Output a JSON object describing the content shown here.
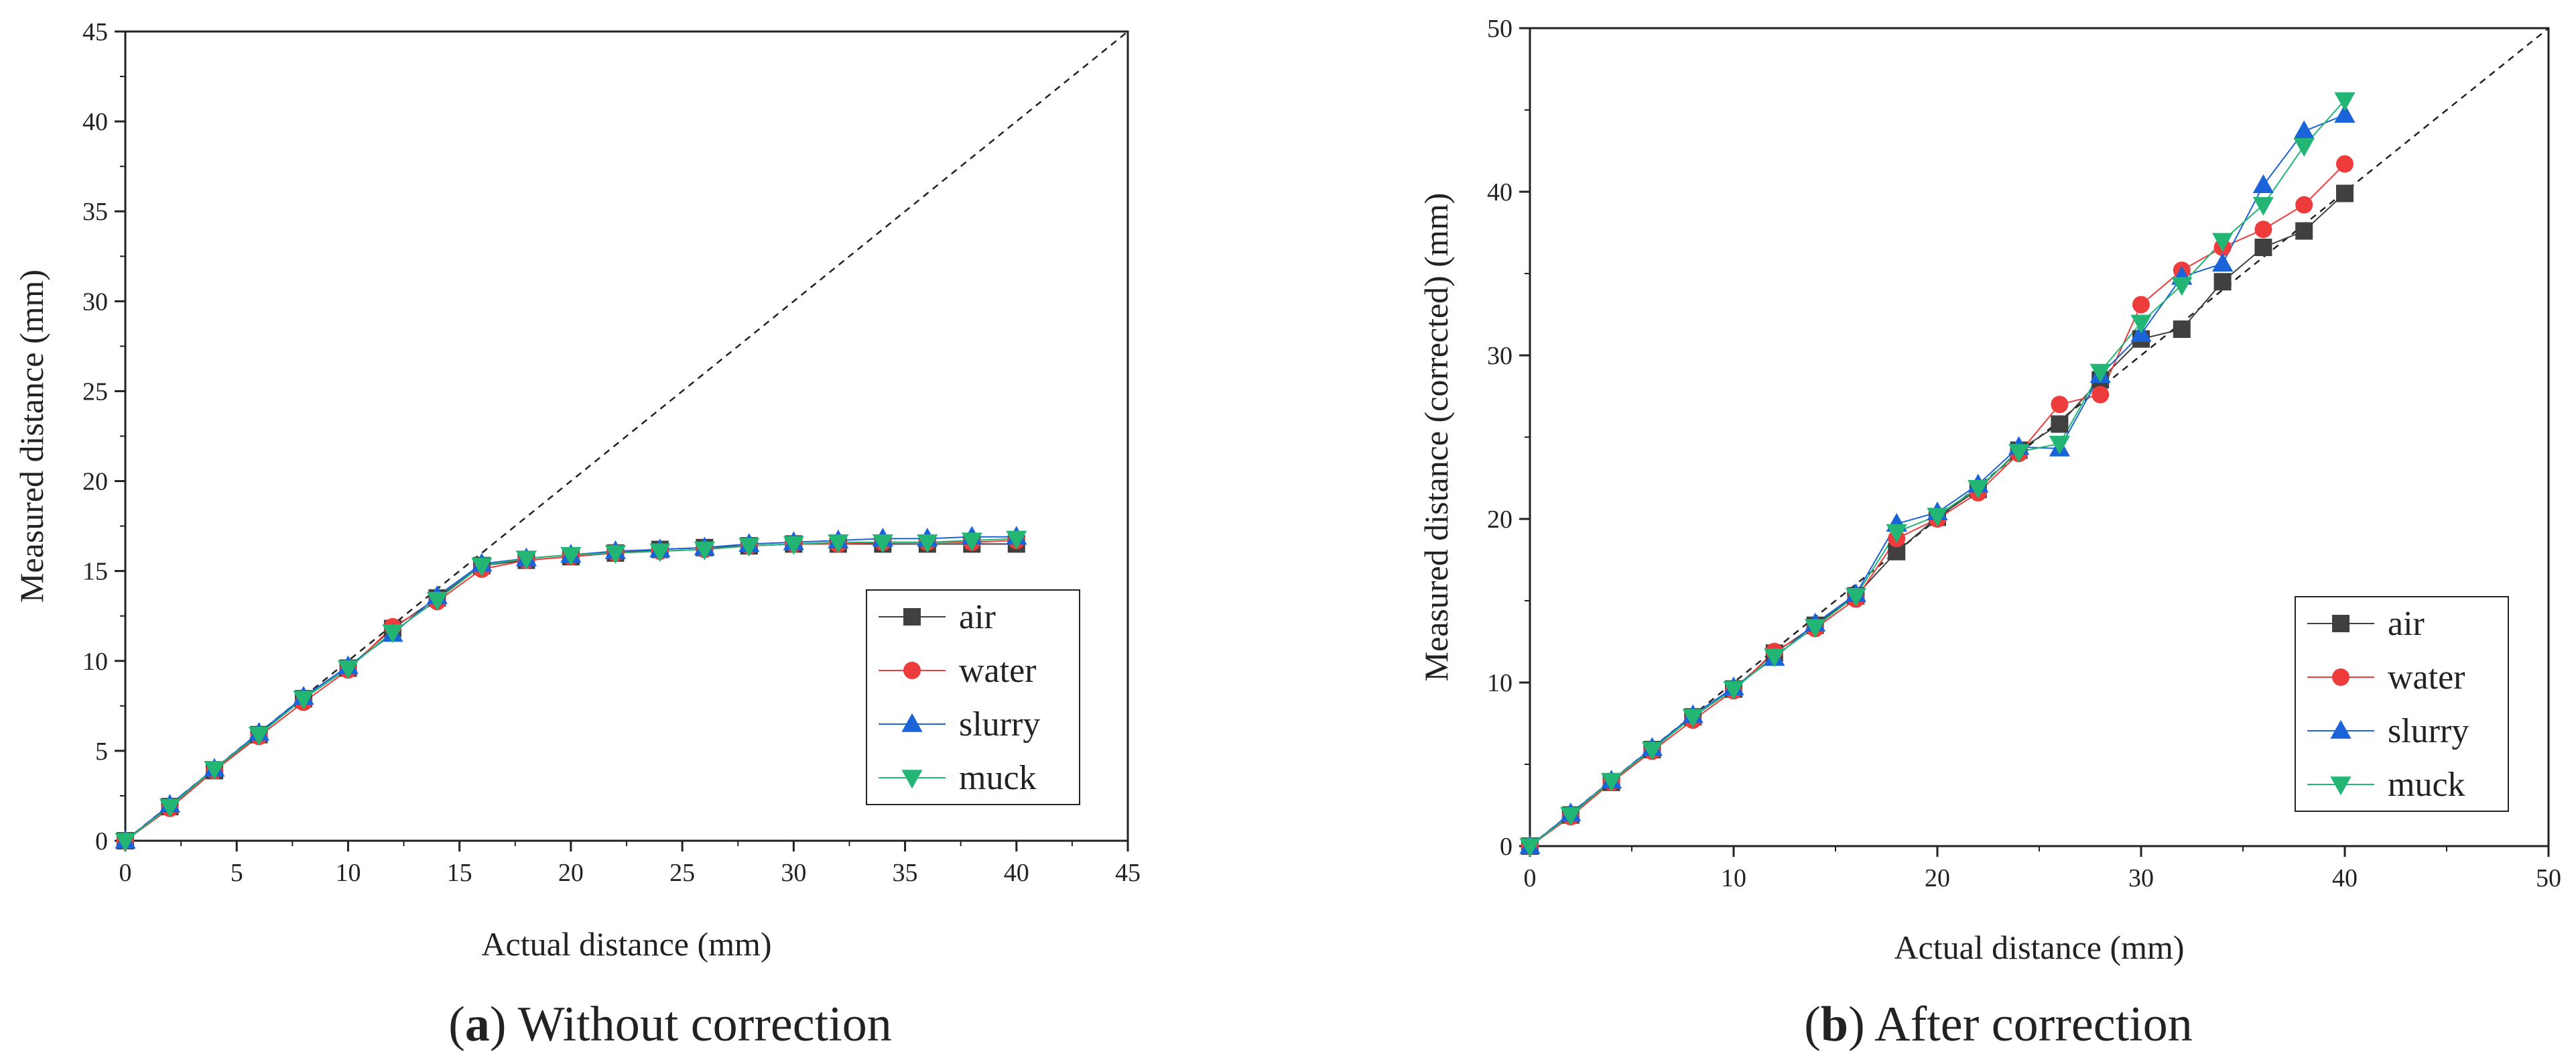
{
  "figure": {
    "panels": [
      {
        "caption_letter": "a",
        "caption_text": " Without correction",
        "caption_open": "(",
        "caption_close": ")"
      },
      {
        "caption_letter": "b",
        "caption_text": " After correction",
        "caption_open": "(",
        "caption_close": ")"
      }
    ]
  },
  "chart_data": [
    {
      "type": "line",
      "title": "",
      "xlabel": "Actual distance (mm)",
      "ylabel": "Measured distance (mm)",
      "xlim": [
        0,
        45
      ],
      "ylim": [
        0,
        45
      ],
      "xticks": [
        0,
        5,
        10,
        15,
        20,
        25,
        30,
        35,
        40,
        45
      ],
      "yticks": [
        0,
        5,
        10,
        15,
        20,
        25,
        30,
        35,
        40,
        45
      ],
      "grid": false,
      "legend_position": "bottom-right",
      "reference_line": "dashed y = x",
      "x": [
        0,
        2,
        4,
        6,
        8,
        10,
        12,
        14,
        16,
        18,
        20,
        22,
        24,
        26,
        28,
        30,
        32,
        34,
        36,
        38,
        40
      ],
      "series": [
        {
          "name": "air",
          "marker": "square",
          "color": "#404040",
          "values": [
            0,
            1.9,
            3.9,
            5.9,
            7.9,
            9.6,
            11.8,
            13.5,
            15.3,
            15.6,
            15.8,
            16.0,
            16.2,
            16.3,
            16.4,
            16.5,
            16.5,
            16.5,
            16.5,
            16.5,
            16.5
          ]
        },
        {
          "name": "water",
          "marker": "circle",
          "color": "#ee3b3b",
          "values": [
            0,
            1.8,
            3.9,
            5.8,
            7.7,
            9.5,
            11.9,
            13.3,
            15.1,
            15.6,
            15.8,
            16.0,
            16.1,
            16.2,
            16.4,
            16.5,
            16.5,
            16.6,
            16.6,
            16.6,
            16.7
          ]
        },
        {
          "name": "slurry",
          "marker": "triangle-up",
          "color": "#1a63d8",
          "values": [
            0,
            2.0,
            4.0,
            6.0,
            8.0,
            9.7,
            11.5,
            13.6,
            15.4,
            15.7,
            15.9,
            16.1,
            16.2,
            16.3,
            16.5,
            16.6,
            16.7,
            16.8,
            16.8,
            16.9,
            16.9
          ]
        },
        {
          "name": "muck",
          "marker": "triangle-down",
          "color": "#22b573",
          "values": [
            0,
            1.9,
            4.0,
            5.9,
            7.9,
            9.6,
            11.6,
            13.4,
            15.3,
            15.7,
            15.9,
            16.0,
            16.1,
            16.2,
            16.4,
            16.5,
            16.6,
            16.6,
            16.6,
            16.7,
            16.8
          ]
        }
      ]
    },
    {
      "type": "line",
      "title": "",
      "xlabel": "Actual distance (mm)",
      "ylabel": "Measured distance (corrected) (mm)",
      "xlim": [
        0,
        50
      ],
      "ylim": [
        0,
        50
      ],
      "xticks": [
        0,
        10,
        20,
        30,
        40,
        50
      ],
      "yticks": [
        0,
        10,
        20,
        30,
        40,
        50
      ],
      "grid": false,
      "legend_position": "bottom-right",
      "reference_line": "dashed y = x",
      "x": [
        0,
        2,
        4,
        6,
        8,
        10,
        12,
        14,
        16,
        18,
        20,
        22,
        24,
        26,
        28,
        30,
        32,
        34,
        36,
        38,
        40
      ],
      "series": [
        {
          "name": "air",
          "marker": "square",
          "color": "#404040",
          "values": [
            0,
            1.9,
            3.9,
            5.9,
            7.9,
            9.6,
            11.8,
            13.5,
            15.3,
            18.0,
            20.1,
            21.8,
            24.2,
            25.8,
            28.5,
            31.0,
            31.6,
            34.5,
            36.6,
            37.6,
            39.9
          ]
        },
        {
          "name": "water",
          "marker": "circle",
          "color": "#ee3b3b",
          "values": [
            0,
            1.8,
            3.9,
            5.8,
            7.7,
            9.5,
            11.9,
            13.3,
            15.1,
            18.8,
            20.0,
            21.6,
            24.0,
            27.0,
            27.6,
            33.1,
            35.2,
            36.6,
            37.7,
            39.2,
            41.7
          ]
        },
        {
          "name": "slurry",
          "marker": "triangle-up",
          "color": "#1a63d8",
          "values": [
            0,
            2.0,
            4.0,
            6.0,
            8.0,
            9.7,
            11.5,
            13.6,
            15.4,
            19.7,
            20.4,
            22.1,
            24.4,
            24.3,
            28.8,
            31.3,
            34.8,
            35.6,
            40.4,
            43.7,
            44.7
          ]
        },
        {
          "name": "muck",
          "marker": "triangle-down",
          "color": "#22b573",
          "values": [
            0,
            1.9,
            4.0,
            5.9,
            7.9,
            9.6,
            11.6,
            13.4,
            15.3,
            19.2,
            20.2,
            21.9,
            24.1,
            24.6,
            29.0,
            32.0,
            34.3,
            37.0,
            39.2,
            42.8,
            45.6
          ]
        }
      ]
    }
  ]
}
